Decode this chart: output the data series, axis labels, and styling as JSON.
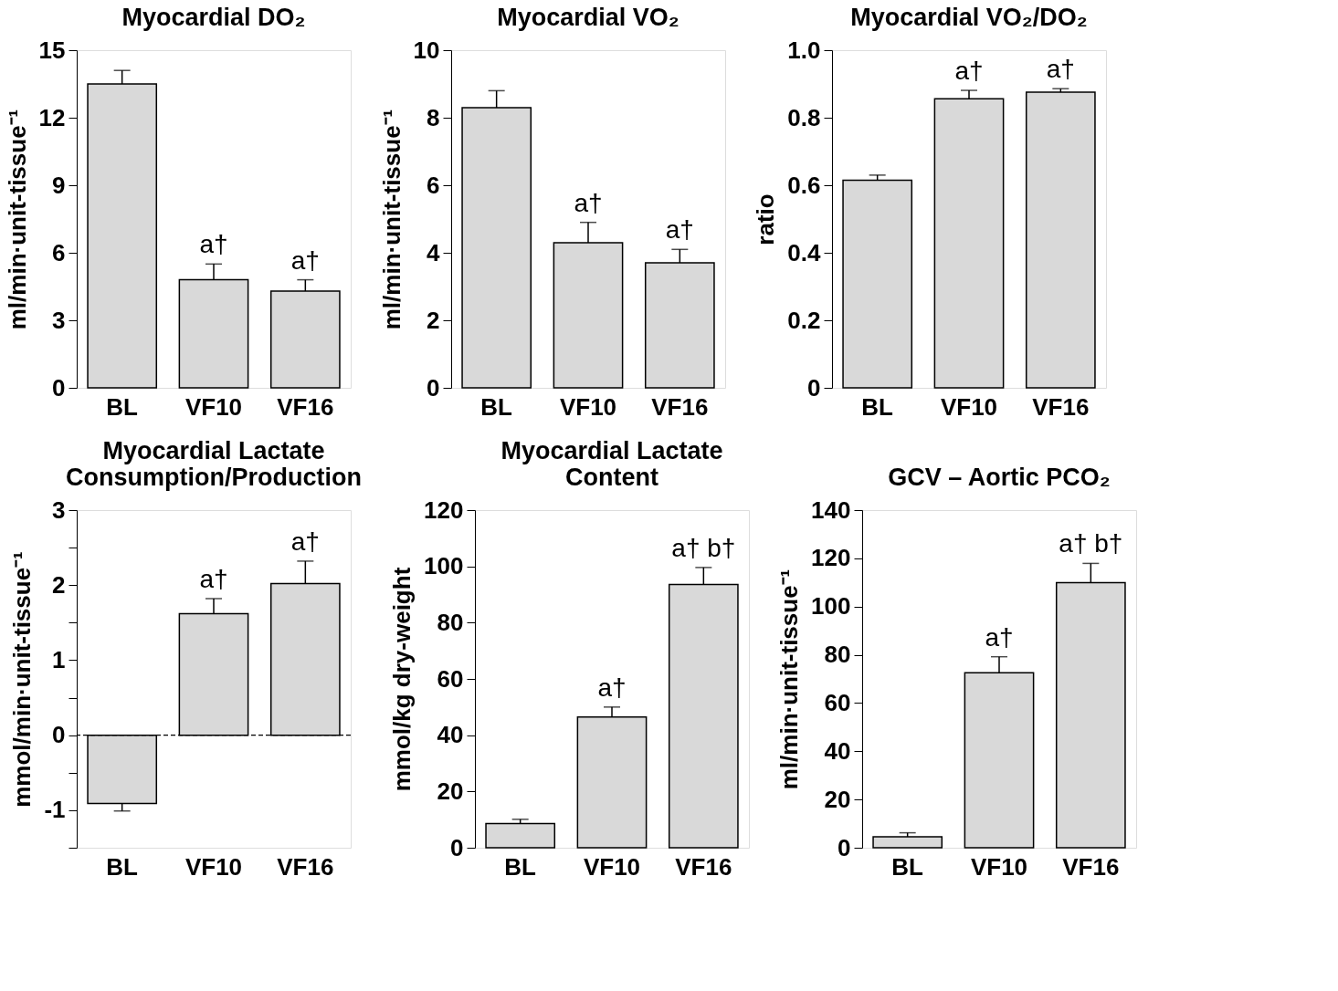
{
  "chart_data": [
    {
      "type": "bar",
      "title": "Myocardial DO₂",
      "ylabel": "ml/min·unit-tissue⁻¹",
      "categories": [
        "BL",
        "VF10",
        "VF16"
      ],
      "values": [
        13.5,
        4.8,
        4.3
      ],
      "errors": [
        0.6,
        0.7,
        0.5
      ],
      "color": "#d9d9d9",
      "ylim": [
        0,
        15
      ],
      "yticks": [
        0,
        3,
        6,
        9,
        12,
        15
      ],
      "grid": false,
      "annotations": [
        {
          "text": "a†",
          "x": "VF10",
          "y": 5.5
        },
        {
          "text": "a†",
          "x": "VF16",
          "y": 4.8
        }
      ]
    },
    {
      "type": "bar",
      "title": "Myocardial VO₂",
      "ylabel": "ml/min·unit-tissue⁻¹",
      "categories": [
        "BL",
        "VF10",
        "VF16"
      ],
      "values": [
        8.3,
        4.3,
        3.7
      ],
      "errors": [
        0.5,
        0.6,
        0.4
      ],
      "color": "#d9d9d9",
      "ylim": [
        0,
        10
      ],
      "yticks": [
        0,
        2,
        4,
        6,
        8,
        10
      ],
      "grid": false,
      "annotations": [
        {
          "text": "a†",
          "x": "VF10",
          "y": 4.9
        },
        {
          "text": "a†",
          "x": "VF16",
          "y": 4.1
        }
      ]
    },
    {
      "type": "bar",
      "title": "Myocardial VO₂/DO₂",
      "ylabel": "ratio",
      "categories": [
        "BL",
        "VF10",
        "VF16"
      ],
      "values": [
        0.615,
        0.856,
        0.876
      ],
      "errors": [
        0.015,
        0.025,
        0.01
      ],
      "color": "#d9d9d9",
      "ylim": [
        0,
        1
      ],
      "yticks": [
        0,
        {
          "value": 0.2,
          "label": "0.2"
        },
        {
          "value": 0.4,
          "label": "0.4"
        },
        {
          "value": 0.6,
          "label": "0.6"
        },
        {
          "value": 0.8,
          "label": "0.8"
        },
        {
          "value": 1,
          "label": "1.0"
        }
      ],
      "grid": false,
      "annotations": [
        {
          "text": "a†",
          "x": "VF10",
          "y": 0.881
        },
        {
          "text": "a†",
          "x": "VF16",
          "y": 0.886
        }
      ]
    },
    {
      "type": "bar",
      "title": "Myocardial Lactate\nConsumption/Production",
      "ylabel": "mmol/min·unit-tissue⁻¹",
      "categories": [
        "BL",
        "VF10",
        "VF16"
      ],
      "values": [
        -0.91,
        1.62,
        2.02
      ],
      "errors": [
        0.1,
        0.2,
        0.3
      ],
      "color": "#d9d9d9",
      "ylim": [
        -1.5,
        3
      ],
      "yticks": [
        {
          "value": -1.5,
          "label": null
        },
        -1,
        {
          "value": -0.5,
          "label": null
        },
        0,
        {
          "value": 0.5,
          "label": null
        },
        1,
        {
          "value": 1.5,
          "label": null
        },
        2,
        {
          "value": 2.5,
          "label": null
        },
        3
      ],
      "grid": false,
      "ref_lines": [
        {
          "axis": "y",
          "value": 0,
          "line_style": "dashed",
          "color": "#000000"
        }
      ],
      "annotations": [
        {
          "text": "a†",
          "x": "VF10",
          "y": 1.82
        },
        {
          "text": "a†",
          "x": "VF16",
          "y": 2.32
        }
      ]
    },
    {
      "type": "bar",
      "title": "Myocardial Lactate\nContent",
      "ylabel": "mmol/kg dry-weight",
      "categories": [
        "BL",
        "VF10",
        "VF16"
      ],
      "values": [
        8.6,
        46.5,
        93.6
      ],
      "errors": [
        1.5,
        3.5,
        6
      ],
      "color": "#d9d9d9",
      "ylim": [
        0,
        120
      ],
      "yticks": [
        0,
        20,
        40,
        60,
        80,
        100,
        120
      ],
      "grid": false,
      "annotations": [
        {
          "text": "a†",
          "x": "VF10",
          "y": 50
        },
        {
          "text": "a† b†",
          "x": "VF16",
          "y": 99.6
        }
      ]
    },
    {
      "type": "bar",
      "title": "GCV – Aortic PCO₂",
      "ylabel": "ml/min·unit-tissue⁻¹",
      "categories": [
        "BL",
        "VF10",
        "VF16"
      ],
      "values": [
        4.5,
        72.6,
        109.9
      ],
      "errors": [
        1.7,
        6.6,
        8
      ],
      "color": "#d9d9d9",
      "ylim": [
        0,
        140
      ],
      "yticks": [
        0,
        20,
        40,
        60,
        80,
        100,
        120,
        140
      ],
      "grid": false,
      "annotations": [
        {
          "text": "a†",
          "x": "VF10",
          "y": 79.2
        },
        {
          "text": "a† b†",
          "x": "VF16",
          "y": 117.9
        }
      ]
    }
  ]
}
